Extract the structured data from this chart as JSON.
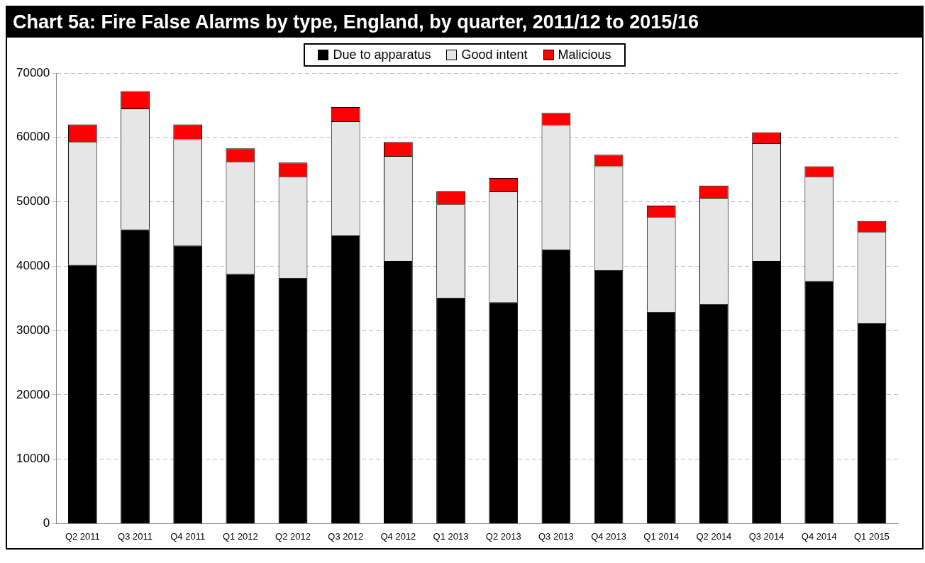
{
  "chart_data": {
    "type": "bar",
    "title": "Chart 5a: Fire False Alarms by type, England, by quarter, 2011/12 to 2015/16",
    "categories": [
      "Q2 2011",
      "Q3 2011",
      "Q4 2011",
      "Q1 2012",
      "Q2 2012",
      "Q3 2012",
      "Q4 2012",
      "Q1 2013",
      "Q2 2013",
      "Q3 2013",
      "Q4 2013",
      "Q1 2014",
      "Q2 2014",
      "Q3 2014",
      "Q4 2014",
      "Q1 2015"
    ],
    "series": [
      {
        "name": "Due to apparatus",
        "color": "#000000",
        "values": [
          40200,
          45700,
          43200,
          38800,
          38200,
          44800,
          40800,
          35100,
          34400,
          42600,
          39400,
          32900,
          34100,
          40800,
          37700,
          31100
        ]
      },
      {
        "name": "Good intent",
        "color": "#e6e6e6",
        "values": [
          19100,
          18800,
          16500,
          17400,
          15700,
          17700,
          16300,
          14500,
          17200,
          19300,
          16100,
          14700,
          16500,
          18300,
          16200,
          14200
        ]
      },
      {
        "name": "Malicious",
        "color": "#ff0000",
        "values": [
          2700,
          2700,
          2300,
          2100,
          2200,
          2200,
          2200,
          2000,
          2100,
          1900,
          1800,
          1800,
          1900,
          1700,
          1600,
          1700
        ]
      }
    ],
    "stacked": true,
    "ylim": [
      0,
      70000
    ],
    "yticks": [
      0,
      10000,
      20000,
      30000,
      40000,
      50000,
      60000,
      70000
    ],
    "grid": "y",
    "legend": "top"
  }
}
